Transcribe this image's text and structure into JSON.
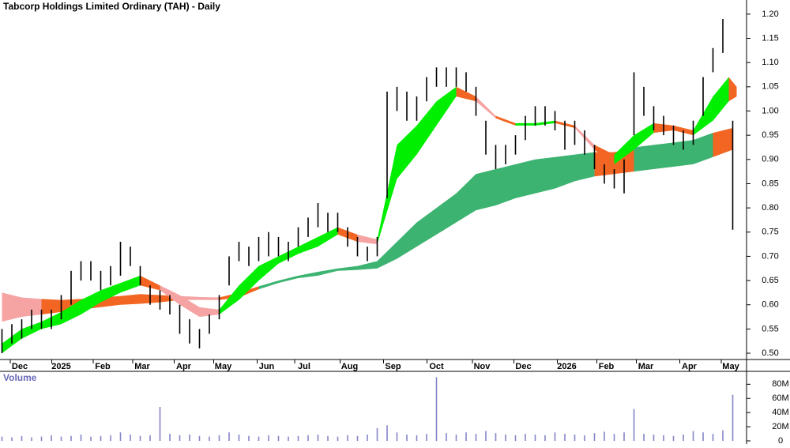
{
  "chart_data": [
    {
      "type": "hilo",
      "title": "Tabcorp Holdings Limited Ordinary (TAH) - Daily",
      "color": "#000000",
      "x": [
        0,
        5,
        10,
        15,
        20,
        25,
        30,
        35,
        40,
        45,
        50,
        55,
        60,
        65,
        70,
        75,
        80,
        85,
        90,
        95,
        100,
        105,
        110,
        115,
        120,
        125,
        130,
        135,
        140,
        145,
        150,
        155,
        160,
        165,
        170,
        175,
        180,
        185,
        190,
        195,
        200,
        205,
        210,
        215,
        220,
        225,
        230,
        235,
        240,
        245,
        250,
        255,
        260,
        265,
        270,
        275,
        280,
        285,
        290,
        295,
        300,
        305,
        310,
        315,
        320,
        325,
        330,
        335,
        340,
        345,
        350,
        355,
        360,
        365,
        370
      ],
      "high": [
        0.55,
        0.56,
        0.57,
        0.59,
        0.59,
        0.59,
        0.62,
        0.67,
        0.69,
        0.69,
        0.67,
        0.68,
        0.73,
        0.72,
        0.68,
        0.64,
        0.63,
        0.62,
        0.6,
        0.57,
        0.55,
        0.58,
        0.62,
        0.7,
        0.73,
        0.72,
        0.74,
        0.75,
        0.74,
        0.73,
        0.76,
        0.78,
        0.81,
        0.79,
        0.79,
        0.76,
        0.74,
        0.72,
        0.74,
        1.04,
        1.05,
        1.04,
        1.03,
        1.07,
        1.09,
        1.09,
        1.09,
        1.08,
        1.05,
        0.98,
        0.93,
        0.93,
        0.95,
        0.99,
        1.01,
        1.01,
        1.0,
        0.98,
        0.98,
        0.96,
        0.93,
        0.89,
        0.88,
        0.9,
        1.08,
        1.05,
        1.01,
        0.99,
        0.97,
        0.96,
        0.98,
        1.07,
        1.13,
        1.19,
        0.98
      ],
      "low": [
        0.5,
        0.52,
        0.53,
        0.55,
        0.55,
        0.55,
        0.57,
        0.6,
        0.65,
        0.65,
        0.63,
        0.64,
        0.66,
        0.68,
        0.64,
        0.6,
        0.59,
        0.58,
        0.54,
        0.52,
        0.51,
        0.54,
        0.57,
        0.64,
        0.69,
        0.68,
        0.69,
        0.7,
        0.7,
        0.69,
        0.72,
        0.74,
        0.76,
        0.75,
        0.75,
        0.72,
        0.7,
        0.69,
        0.7,
        0.82,
        1.0,
        0.98,
        0.98,
        1.02,
        1.05,
        1.05,
        1.05,
        1.04,
        0.99,
        0.91,
        0.88,
        0.89,
        0.91,
        0.94,
        0.97,
        0.97,
        0.96,
        0.92,
        0.93,
        0.91,
        0.88,
        0.85,
        0.84,
        0.83,
        0.95,
        0.99,
        0.96,
        0.95,
        0.93,
        0.92,
        0.93,
        0.99,
        1.08,
        1.12,
        0.755
      ],
      "ribbons": [
        {
          "x": [
            0,
            10,
            20,
            30,
            40,
            50,
            60,
            70,
            80,
            90,
            100,
            110,
            120,
            130,
            140,
            150,
            160,
            170,
            180,
            190,
            200,
            210,
            220,
            230,
            240,
            250,
            260,
            270,
            280,
            290,
            300,
            310,
            320,
            330,
            340,
            350,
            360,
            370
          ],
          "upper": [
            0.625,
            0.615,
            0.612,
            0.61,
            0.612,
            0.615,
            0.618,
            0.622,
            0.62,
            0.618,
            0.616,
            0.615,
            0.625,
            0.638,
            0.65,
            0.66,
            0.668,
            0.675,
            0.68,
            0.69,
            0.73,
            0.77,
            0.8,
            0.83,
            0.87,
            0.88,
            0.89,
            0.9,
            0.905,
            0.91,
            0.915,
            0.915,
            0.925,
            0.93,
            0.935,
            0.94,
            0.955,
            0.965
          ],
          "lower": [
            0.565,
            0.575,
            0.58,
            0.585,
            0.59,
            0.595,
            0.6,
            0.602,
            0.605,
            0.61,
            0.61,
            0.61,
            0.615,
            0.632,
            0.645,
            0.655,
            0.66,
            0.67,
            0.672,
            0.675,
            0.695,
            0.72,
            0.745,
            0.77,
            0.795,
            0.805,
            0.82,
            0.83,
            0.84,
            0.855,
            0.865,
            0.87,
            0.875,
            0.88,
            0.885,
            0.89,
            0.905,
            0.92
          ],
          "segment_colors": [
            "#f6a3a3",
            "#f6a3a3",
            "#f26522",
            "#f26522",
            "#f26522",
            "#f26522",
            "#f26522",
            "#f26522",
            "#f26522",
            "#f6a3a3",
            "#f6a3a3",
            "#f26522",
            "#f26522",
            "#3cb371",
            "#3cb371",
            "#3cb371",
            "#3cb371",
            "#3cb371",
            "#3cb371",
            "#3cb371",
            "#3cb371",
            "#3cb371",
            "#3cb371",
            "#3cb371",
            "#3cb371",
            "#3cb371",
            "#3cb371",
            "#3cb371",
            "#3cb371",
            "#3cb371",
            "#f26522",
            "#f26522",
            "#3cb371",
            "#3cb371",
            "#3cb371",
            "#3cb371",
            "#f26522"
          ]
        },
        {
          "x": [
            0,
            10,
            20,
            30,
            40,
            50,
            60,
            70,
            80,
            90,
            100,
            110,
            120,
            130,
            140,
            150,
            160,
            170,
            180,
            190,
            200,
            210,
            220,
            230,
            240,
            250,
            260,
            270,
            280,
            290,
            300,
            310,
            320,
            330,
            340,
            350,
            360,
            368,
            372
          ],
          "upper": [
            0.52,
            0.55,
            0.565,
            0.585,
            0.61,
            0.63,
            0.645,
            0.66,
            0.64,
            0.62,
            0.595,
            0.59,
            0.64,
            0.68,
            0.7,
            0.72,
            0.74,
            0.76,
            0.745,
            0.735,
            0.93,
            0.97,
            1.02,
            1.05,
            1.03,
            0.99,
            0.975,
            0.975,
            0.98,
            0.97,
            0.93,
            0.91,
            0.95,
            0.975,
            0.97,
            0.96,
            1.03,
            1.07,
            1.05
          ],
          "lower": [
            0.5,
            0.53,
            0.55,
            0.56,
            0.58,
            0.605,
            0.625,
            0.64,
            0.63,
            0.6,
            0.575,
            0.58,
            0.61,
            0.65,
            0.685,
            0.705,
            0.72,
            0.745,
            0.73,
            0.725,
            0.86,
            0.91,
            0.97,
            1.03,
            1.02,
            0.985,
            0.97,
            0.97,
            0.975,
            0.965,
            0.92,
            0.89,
            0.92,
            0.955,
            0.96,
            0.95,
            0.98,
            1.02,
            1.03
          ],
          "segment_colors": [
            "#00ee00",
            "#00ee00",
            "#00ee00",
            "#00ee00",
            "#00ee00",
            "#00ee00",
            "#00ee00",
            "#f26522",
            "#f6a3a3",
            "#f6a3a3",
            "#f6a3a3",
            "#00ee00",
            "#00ee00",
            "#00ee00",
            "#00ee00",
            "#00ee00",
            "#00ee00",
            "#f26522",
            "#f6a3a3",
            "#00ee00",
            "#00ee00",
            "#00ee00",
            "#00ee00",
            "#f26522",
            "#f6a3a3",
            "#f26522",
            "#00ee00",
            "#00ee00",
            "#f26522",
            "#f6a3a3",
            "#f26522",
            "#00ee00",
            "#00ee00",
            "#f26522",
            "#f26522",
            "#00ee00",
            "#00ee00",
            "#f26522"
          ]
        }
      ],
      "xlim": [
        -1,
        377
      ],
      "ylim": [
        0.487,
        1.221
      ],
      "xticks": [
        {
          "value": 9,
          "label": "Dec"
        },
        {
          "value": 30,
          "label": "2025"
        },
        {
          "value": 51,
          "label": "Feb"
        },
        {
          "value": 71,
          "label": "Mar"
        },
        {
          "value": 92,
          "label": "Apr"
        },
        {
          "value": 112,
          "label": "May"
        },
        {
          "value": 134,
          "label": "Jun"
        },
        {
          "value": 153,
          "label": "Jul"
        },
        {
          "value": 176,
          "label": "Aug"
        },
        {
          "value": 198,
          "label": "Sep"
        },
        {
          "value": 220,
          "label": "Oct"
        },
        {
          "value": 243,
          "label": "Nov"
        },
        {
          "value": 264,
          "label": "Dec"
        },
        {
          "value": 286,
          "label": "2026"
        },
        {
          "value": 306,
          "label": "Feb"
        },
        {
          "value": 326,
          "label": "Mar"
        },
        {
          "value": 348,
          "label": "Apr"
        },
        {
          "value": 369,
          "label": "May"
        }
      ],
      "yticks": [
        {
          "value": 0.5,
          "label": "0.50"
        },
        {
          "value": 0.55,
          "label": "0.55"
        },
        {
          "value": 0.6,
          "label": "0.60"
        },
        {
          "value": 0.65,
          "label": "0.65"
        },
        {
          "value": 0.7,
          "label": "0.70"
        },
        {
          "value": 0.75,
          "label": "0.75"
        },
        {
          "value": 0.8,
          "label": "0.80"
        },
        {
          "value": 0.85,
          "label": "0.85"
        },
        {
          "value": 0.9,
          "label": "0.90"
        },
        {
          "value": 0.95,
          "label": "0.95"
        },
        {
          "value": 1.0,
          "label": "1.00"
        },
        {
          "value": 1.05,
          "label": "1.05"
        },
        {
          "value": 1.1,
          "label": "1.10"
        },
        {
          "value": 1.15,
          "label": "1.15"
        },
        {
          "value": 1.2,
          "label": "1.20"
        }
      ]
    },
    {
      "type": "bar",
      "title": "Volume",
      "color": "#8585c8",
      "values": [
        6,
        5,
        7,
        5,
        6,
        8,
        6,
        7,
        9,
        6,
        7,
        8,
        12,
        9,
        7,
        8,
        48,
        10,
        8,
        9,
        7,
        6,
        8,
        12,
        9,
        7,
        6,
        8,
        7,
        6,
        7,
        8,
        9,
        7,
        6,
        8,
        7,
        9,
        18,
        22,
        12,
        9,
        8,
        10,
        90,
        11,
        9,
        12,
        10,
        14,
        11,
        9,
        8,
        10,
        9,
        8,
        12,
        10,
        9,
        8,
        11,
        13,
        10,
        12,
        45,
        10,
        9,
        8,
        7,
        9,
        14,
        12,
        10,
        15,
        65
      ],
      "ylim": [
        0,
        96
      ],
      "yticks": [
        0,
        {
          "value": 20,
          "label": "20M"
        },
        {
          "value": 40,
          "label": "40M"
        },
        {
          "value": 60,
          "label": "60M"
        },
        {
          "value": 80,
          "label": "80M"
        }
      ]
    }
  ]
}
